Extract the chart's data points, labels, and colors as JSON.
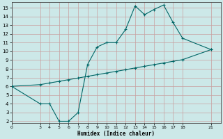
{
  "xlabel": "Humidex (Indice chaleur)",
  "bg_color": "#cce8e8",
  "grid_color_major": "#d4a0a0",
  "grid_color_minor": "#b8d8d8",
  "line_color": "#006666",
  "xlim": [
    0,
    22
  ],
  "ylim": [
    1.8,
    15.6
  ],
  "xticks": [
    0,
    3,
    4,
    5,
    6,
    7,
    8,
    9,
    10,
    11,
    12,
    13,
    14,
    15,
    16,
    17,
    18,
    21
  ],
  "yticks": [
    2,
    3,
    4,
    5,
    6,
    7,
    8,
    9,
    10,
    11,
    12,
    13,
    14,
    15
  ],
  "curve1_x": [
    0,
    3,
    4,
    5,
    6,
    7,
    8,
    9,
    10,
    11,
    12,
    13,
    14,
    15,
    16,
    17,
    18,
    21
  ],
  "curve1_y": [
    6,
    4,
    4,
    2,
    2,
    3,
    8.5,
    10.5,
    11,
    11,
    12.5,
    15.2,
    14.2,
    14.8,
    15.3,
    13.3,
    11.5,
    10.2
  ],
  "curve2_x": [
    0,
    3,
    4,
    5,
    6,
    7,
    8,
    9,
    10,
    11,
    12,
    13,
    14,
    15,
    16,
    17,
    18,
    21
  ],
  "curve2_y": [
    6,
    6.19,
    6.38,
    6.57,
    6.76,
    6.95,
    7.14,
    7.33,
    7.52,
    7.71,
    7.9,
    8.1,
    8.29,
    8.48,
    8.67,
    8.86,
    9.05,
    10.2
  ]
}
